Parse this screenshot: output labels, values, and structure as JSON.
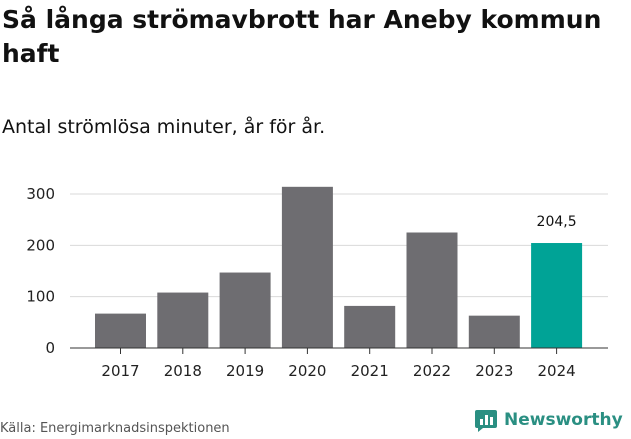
{
  "title": "Så långa strömavbrott har Aneby kommun haft",
  "subtitle": "Antal strömlösa minuter, år för år.",
  "source": "Källa: Energimarknadsinspektionen",
  "brand": {
    "name": "Newsworthy",
    "icon": "newsworthy-logo-icon",
    "color": "#2a8f82"
  },
  "chart_data": {
    "type": "bar",
    "categories": [
      "2017",
      "2018",
      "2019",
      "2020",
      "2021",
      "2022",
      "2023",
      "2024"
    ],
    "values": [
      67,
      108,
      147,
      314,
      82,
      225,
      63,
      204.5
    ],
    "highlight_index": 7,
    "data_labels": [
      {
        "index": 7,
        "text": "204,5"
      }
    ],
    "title": "Så långa strömavbrott har Aneby kommun haft",
    "subtitle": "Antal strömlösa minuter, år för år.",
    "xlabel": "",
    "ylabel": "",
    "ylim": [
      0,
      300
    ],
    "yticks": [
      0,
      100,
      200,
      300
    ],
    "grid": true,
    "colors": {
      "bar": "#6e6d71",
      "highlight": "#00a396",
      "grid": "#d9d9d9",
      "axis": "#333333"
    }
  }
}
